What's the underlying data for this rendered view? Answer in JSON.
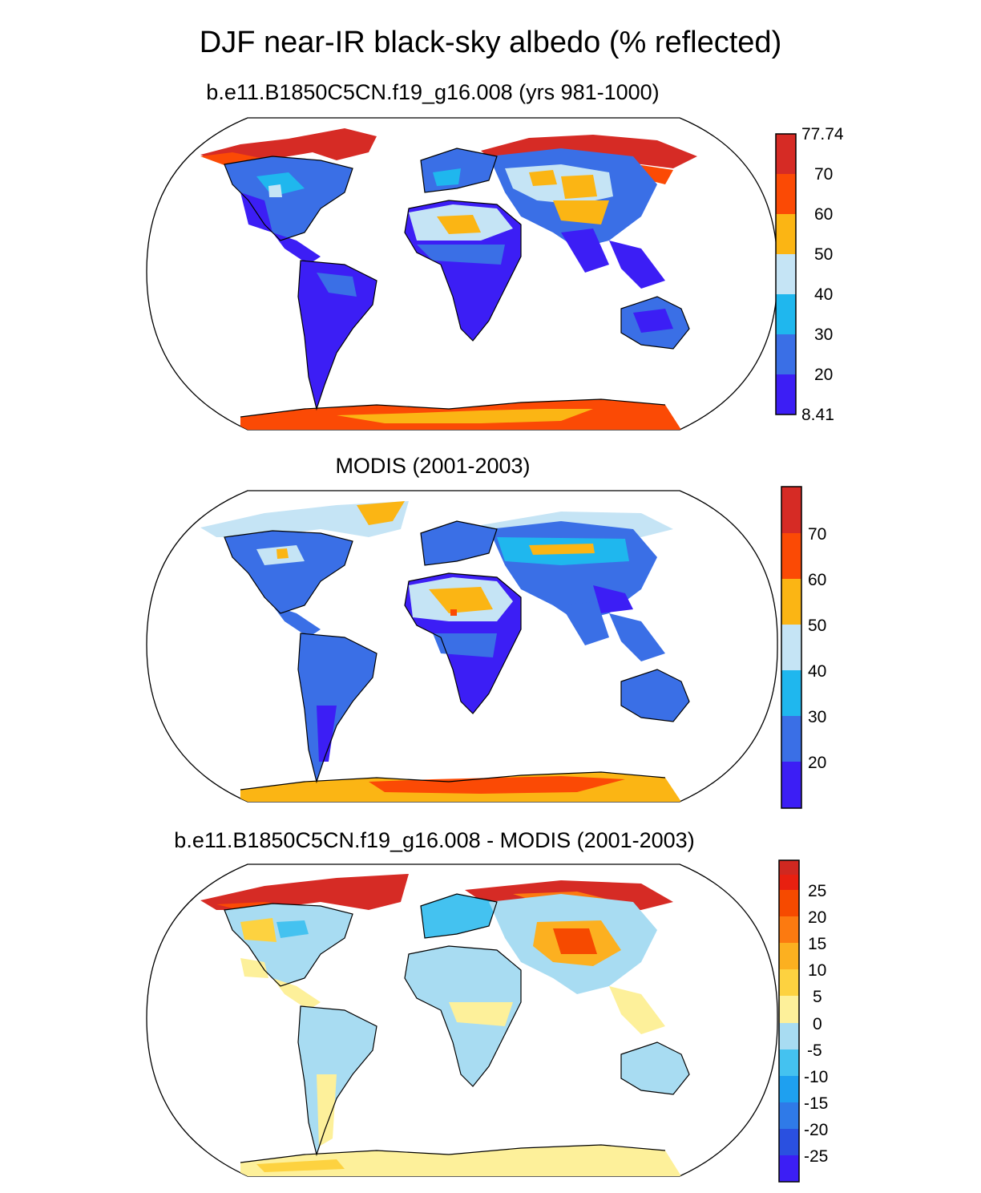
{
  "title": "DJF near-IR black-sky albedo (% reflected)",
  "panels": [
    {
      "subtitle": "b.e11.B1850C5CN.f19_g16.008 (yrs 981-1000)",
      "colorbar": {
        "colors": [
          "#3c1ef5",
          "#3a6fe6",
          "#1fb7ee",
          "#c5e4f5",
          "#fbb514",
          "#fb4a05",
          "#d62b25"
        ],
        "labels": [
          "8.41",
          "20",
          "30",
          "40",
          "50",
          "60",
          "70",
          "77.74"
        ]
      }
    },
    {
      "subtitle": "MODIS (2001-2003)",
      "colorbar": {
        "colors": [
          "#3c1ef5",
          "#3a6fe6",
          "#1fb7ee",
          "#c5e4f5",
          "#fbb514",
          "#fb4a05",
          "#d62b25"
        ],
        "labels": [
          "20",
          "30",
          "40",
          "50",
          "60",
          "70"
        ]
      }
    },
    {
      "subtitle": "b.e11.B1850C5CN.f19_g16.008 - MODIS (2001-2003)",
      "colorbar": {
        "colors": [
          "#3c1ef5",
          "#2a50e0",
          "#2f7ae8",
          "#1ea0f0",
          "#44c2f0",
          "#a8dcf2",
          "#fdf09a",
          "#fdd240",
          "#fcb020",
          "#fc7a10",
          "#f64a00",
          "#e82010",
          "#d02820"
        ],
        "labels": [
          "-25",
          "-20",
          "-15",
          "-10",
          "-5",
          "0",
          "5",
          "10",
          "15",
          "20",
          "25"
        ]
      }
    }
  ]
}
